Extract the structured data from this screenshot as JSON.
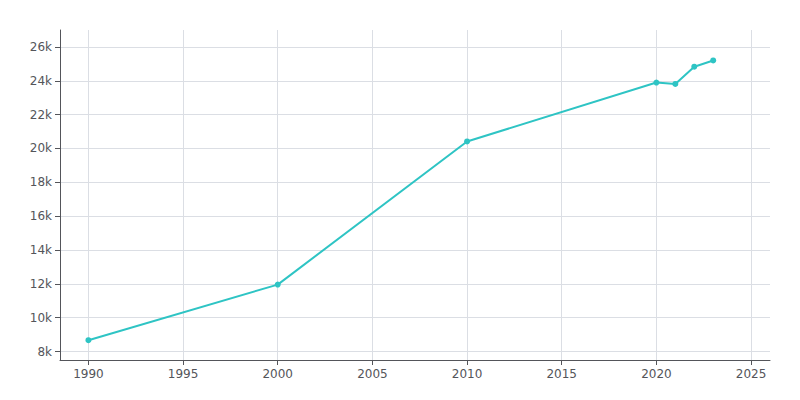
{
  "chart_data": {
    "type": "line",
    "x": [
      1990,
      2000,
      2010,
      2020,
      2021,
      2022,
      2023
    ],
    "values": [
      8670,
      11956,
      20413,
      23896,
      23811,
      24832,
      25200
    ],
    "color": "#2EC4C4",
    "marker": "circle",
    "xlim": [
      1988.5,
      2026
    ],
    "xticks": [
      1990,
      1995,
      2000,
      2005,
      2010,
      2015,
      2020,
      2025
    ],
    "ylim": [
      7500,
      27000
    ],
    "yticks": [
      {
        "value": 8000,
        "label": "8k"
      },
      {
        "value": 10000,
        "label": "10k"
      },
      {
        "value": 12000,
        "label": "12k"
      },
      {
        "value": 14000,
        "label": "14k"
      },
      {
        "value": 16000,
        "label": "16k"
      },
      {
        "value": 18000,
        "label": "18k"
      },
      {
        "value": 20000,
        "label": "20k"
      },
      {
        "value": 22000,
        "label": "22k"
      },
      {
        "value": 24000,
        "label": "24k"
      },
      {
        "value": 26000,
        "label": "26k"
      }
    ],
    "grid": true
  }
}
